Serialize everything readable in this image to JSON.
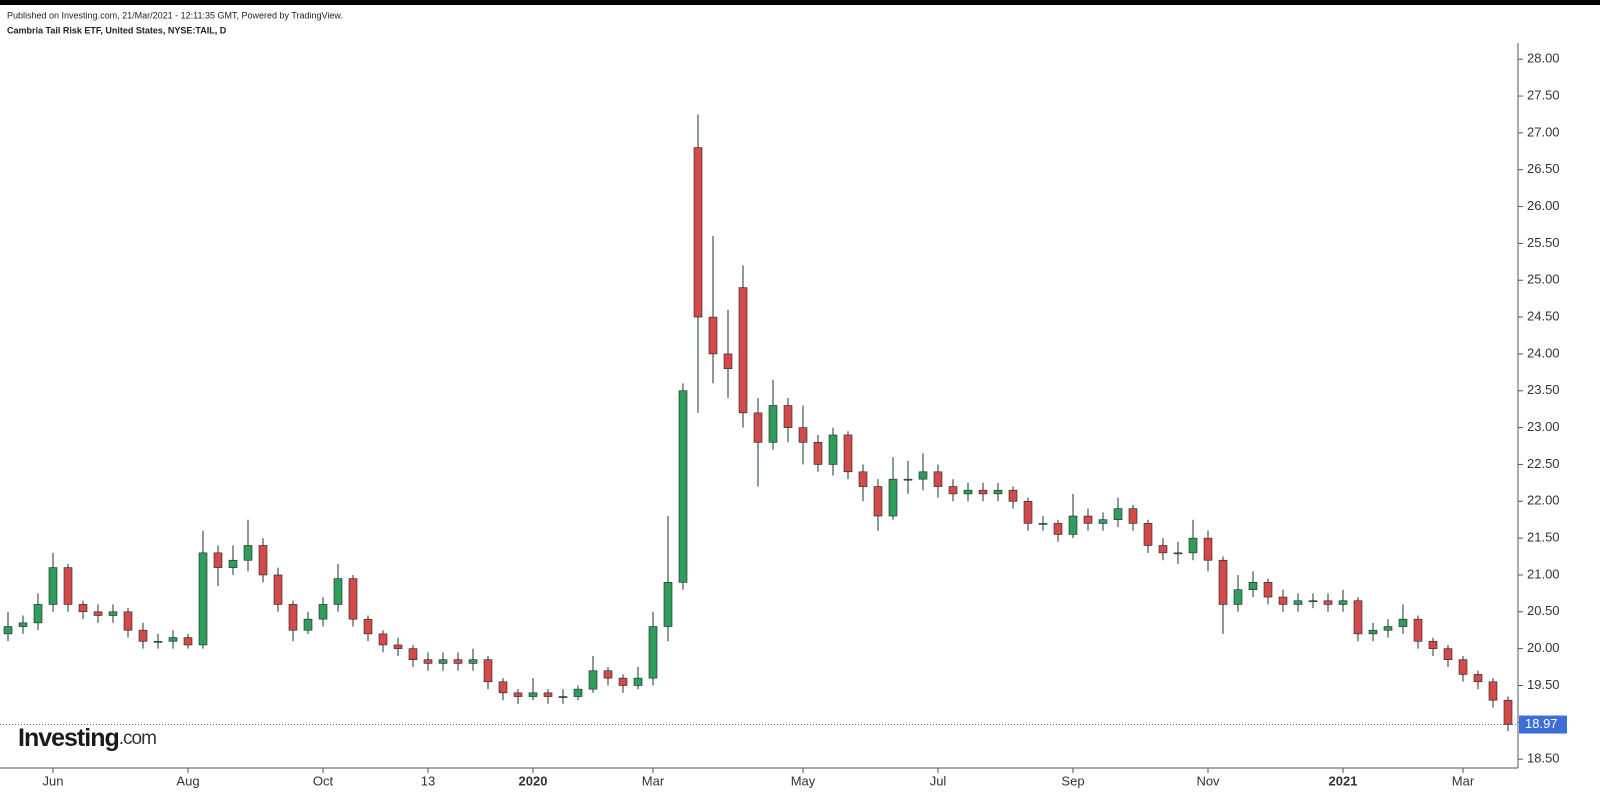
{
  "header": {
    "published": "Published on Investing.com, 21/Mar/2021 - 12:11:35 GMT, Powered by TradingView.",
    "symbol": "Cambria Tail Risk ETF, United States, NYSE:TAIL, D"
  },
  "logo": {
    "brand": "Investing",
    "suffix": ".com"
  },
  "chart_data": {
    "type": "candlestick",
    "up_color": "#2f9d5c",
    "down_color": "#d24a4a",
    "categories": [
      null,
      null,
      null,
      "Jun",
      null,
      null,
      null,
      null,
      null,
      null,
      null,
      null,
      "Aug",
      null,
      null,
      null,
      null,
      null,
      null,
      null,
      null,
      "Oct",
      null,
      null,
      null,
      null,
      null,
      null,
      "13",
      null,
      null,
      null,
      null,
      null,
      null,
      "2020",
      null,
      null,
      null,
      null,
      null,
      null,
      null,
      "Mar",
      null,
      null,
      null,
      null,
      null,
      null,
      null,
      null,
      null,
      "May",
      null,
      null,
      null,
      null,
      null,
      null,
      null,
      null,
      "Jul",
      null,
      null,
      null,
      null,
      null,
      null,
      null,
      null,
      "Sep",
      null,
      null,
      null,
      null,
      null,
      null,
      null,
      null,
      "Nov",
      null,
      null,
      null,
      null,
      null,
      null,
      null,
      null,
      "2021",
      null,
      null,
      null,
      null,
      null,
      null,
      null,
      "Mar",
      null,
      null,
      null
    ],
    "open": [
      20.2,
      20.3,
      20.35,
      20.6,
      21.1,
      20.6,
      20.5,
      20.45,
      20.5,
      20.25,
      20.1,
      20.1,
      20.15,
      20.05,
      21.3,
      21.1,
      21.2,
      21.4,
      21.0,
      20.6,
      20.25,
      20.4,
      20.6,
      20.95,
      20.4,
      20.2,
      20.05,
      20.0,
      19.85,
      19.8,
      19.85,
      19.8,
      19.85,
      19.55,
      19.4,
      19.35,
      19.4,
      19.35,
      19.35,
      19.45,
      19.7,
      19.6,
      19.5,
      19.6,
      20.3,
      20.9,
      26.8,
      24.5,
      24.0,
      24.9,
      23.2,
      22.8,
      23.3,
      23.0,
      22.8,
      22.5,
      22.9,
      22.4,
      22.2,
      21.8,
      22.3,
      22.3,
      22.4,
      22.2,
      22.1,
      22.15,
      22.1,
      22.15,
      22.0,
      21.7,
      21.7,
      21.55,
      21.8,
      21.7,
      21.75,
      21.9,
      21.7,
      21.4,
      21.3,
      21.3,
      21.5,
      21.2,
      20.6,
      20.8,
      20.9,
      20.7,
      20.6,
      20.65,
      20.65,
      20.6,
      20.65,
      20.2,
      20.25,
      20.3,
      20.4,
      20.1,
      20.0,
      19.85,
      19.65,
      19.55,
      19.3
    ],
    "high": [
      20.5,
      20.45,
      20.75,
      21.3,
      21.15,
      20.65,
      20.6,
      20.6,
      20.55,
      20.35,
      20.2,
      20.25,
      20.2,
      21.6,
      21.4,
      21.4,
      21.75,
      21.5,
      21.1,
      20.65,
      20.5,
      20.7,
      21.15,
      21.0,
      20.45,
      20.25,
      20.15,
      20.05,
      19.95,
      19.95,
      19.95,
      20.0,
      19.9,
      19.6,
      19.45,
      19.6,
      19.45,
      19.45,
      19.5,
      19.9,
      19.75,
      19.65,
      19.75,
      20.5,
      21.8,
      23.6,
      27.25,
      25.6,
      24.6,
      25.2,
      23.4,
      23.65,
      23.4,
      23.3,
      22.9,
      23.0,
      22.95,
      22.5,
      22.3,
      22.6,
      22.55,
      22.65,
      22.5,
      22.3,
      22.25,
      22.25,
      22.25,
      22.2,
      22.05,
      21.8,
      21.75,
      22.1,
      21.9,
      21.85,
      22.05,
      21.95,
      21.75,
      21.5,
      21.45,
      21.75,
      21.6,
      21.25,
      21.0,
      21.05,
      20.95,
      20.8,
      20.75,
      20.75,
      20.75,
      20.8,
      20.7,
      20.35,
      20.4,
      20.6,
      20.45,
      20.15,
      20.05,
      19.9,
      19.7,
      19.6,
      19.35
    ],
    "low": [
      20.1,
      20.2,
      20.25,
      20.5,
      20.5,
      20.4,
      20.35,
      20.35,
      20.15,
      20.0,
      20.0,
      20.0,
      20.0,
      20.0,
      20.85,
      21.0,
      21.05,
      20.9,
      20.5,
      20.1,
      20.2,
      20.3,
      20.5,
      20.3,
      20.1,
      19.95,
      19.9,
      19.75,
      19.7,
      19.7,
      19.7,
      19.7,
      19.45,
      19.3,
      19.25,
      19.3,
      19.25,
      19.25,
      19.3,
      19.4,
      19.5,
      19.4,
      19.45,
      19.5,
      20.1,
      20.8,
      23.2,
      23.6,
      23.4,
      23.0,
      22.2,
      22.7,
      22.8,
      22.5,
      22.4,
      22.35,
      22.3,
      22.0,
      21.6,
      21.75,
      22.1,
      22.15,
      22.05,
      22.0,
      22.0,
      22.0,
      22.0,
      21.9,
      21.6,
      21.6,
      21.45,
      21.5,
      21.6,
      21.6,
      21.65,
      21.6,
      21.3,
      21.2,
      21.15,
      21.2,
      21.05,
      20.2,
      20.5,
      20.7,
      20.6,
      20.5,
      20.5,
      20.55,
      20.5,
      20.5,
      20.1,
      20.1,
      20.15,
      20.2,
      20.0,
      19.9,
      19.75,
      19.55,
      19.45,
      19.2,
      18.88
    ],
    "close": [
      20.3,
      20.35,
      20.6,
      21.1,
      20.6,
      20.5,
      20.45,
      20.5,
      20.25,
      20.1,
      20.1,
      20.15,
      20.05,
      21.3,
      21.1,
      21.2,
      21.4,
      21.0,
      20.6,
      20.25,
      20.4,
      20.6,
      20.95,
      20.4,
      20.2,
      20.05,
      20.0,
      19.85,
      19.8,
      19.85,
      19.8,
      19.85,
      19.55,
      19.4,
      19.35,
      19.4,
      19.35,
      19.35,
      19.45,
      19.7,
      19.6,
      19.5,
      19.6,
      20.3,
      20.9,
      23.5,
      24.5,
      24.0,
      23.8,
      23.2,
      22.8,
      23.3,
      23.0,
      22.8,
      22.5,
      22.9,
      22.4,
      22.2,
      21.8,
      22.3,
      22.3,
      22.4,
      22.2,
      22.1,
      22.15,
      22.1,
      22.15,
      22.0,
      21.7,
      21.7,
      21.55,
      21.8,
      21.7,
      21.75,
      21.9,
      21.7,
      21.4,
      21.3,
      21.3,
      21.5,
      21.2,
      20.6,
      20.8,
      20.9,
      20.7,
      20.6,
      20.65,
      20.65,
      20.6,
      20.65,
      20.2,
      20.25,
      20.3,
      20.4,
      20.1,
      20.0,
      19.85,
      19.65,
      19.55,
      19.3,
      18.97
    ],
    "ylim": [
      18.38,
      28.22
    ],
    "yticks": [
      {
        "value": 18.5,
        "label": "18.50"
      },
      {
        "value": 19,
        "label": "19.00"
      },
      {
        "value": 19.5,
        "label": "19.50"
      },
      {
        "value": 20,
        "label": "20.00"
      },
      {
        "value": 20.5,
        "label": "20.50"
      },
      {
        "value": 21,
        "label": "21.00"
      },
      {
        "value": 21.5,
        "label": "21.50"
      },
      {
        "value": 22,
        "label": "22.00"
      },
      {
        "value": 22.5,
        "label": "22.50"
      },
      {
        "value": 23,
        "label": "23.00"
      },
      {
        "value": 23.5,
        "label": "23.50"
      },
      {
        "value": 24,
        "label": "24.00"
      },
      {
        "value": 24.5,
        "label": "24.50"
      },
      {
        "value": 25,
        "label": "25.00"
      },
      {
        "value": 25.5,
        "label": "25.50"
      },
      {
        "value": 26,
        "label": "26.00"
      },
      {
        "value": 26.5,
        "label": "26.50"
      },
      {
        "value": 27,
        "label": "27.00"
      },
      {
        "value": 27.5,
        "label": "27.50"
      },
      {
        "value": 28,
        "label": "28.00"
      }
    ],
    "last_price_color": "#3d6fd8"
  }
}
